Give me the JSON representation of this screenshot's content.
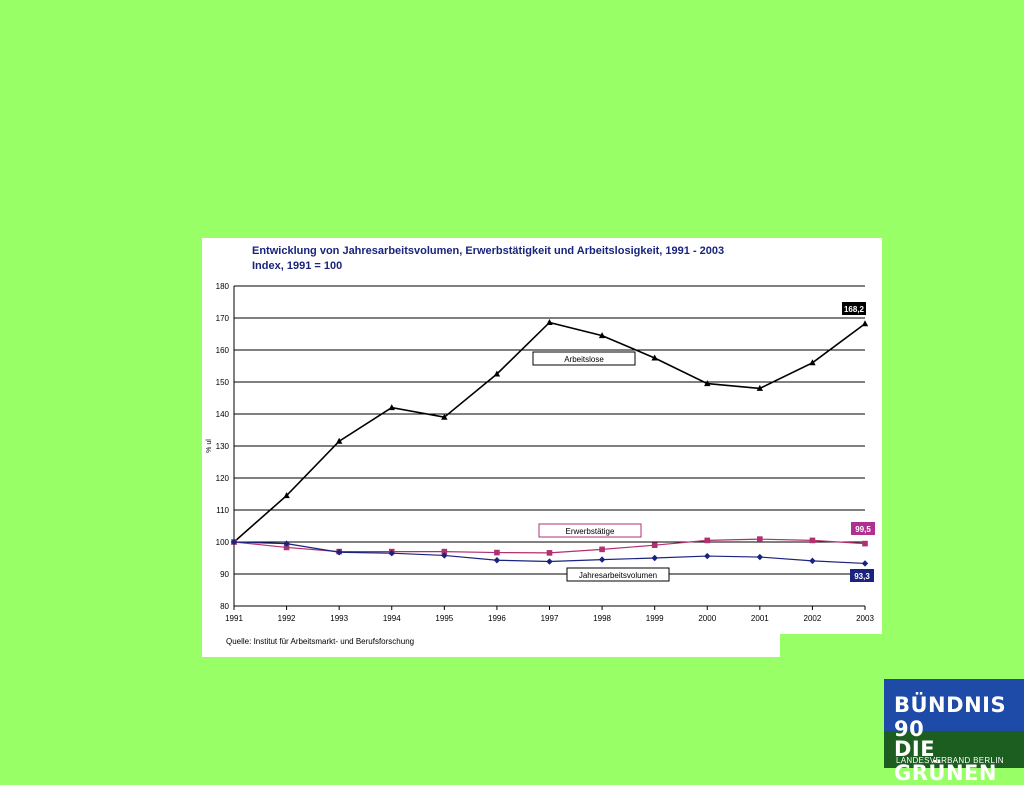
{
  "source": "Quelle:  Institut für Arbeitsmarkt- und Berufsforschung",
  "logo": {
    "line1": "BÜNDNIS 90",
    "line2": "DIE GRÜNEN",
    "line3": "LANDESVERBAND BERLIN",
    "colors": {
      "blue": "#1e4aa8",
      "green": "#1b5e20"
    }
  },
  "chart_data": {
    "type": "line",
    "title": "Entwicklung von Jahresarbeitsvolumen, Erwerbstätigkeit und Arbeitslosigkeit, 1991 - 2003",
    "subtitle": "Index, 1991 = 100",
    "ylabel": "% ul",
    "xlabel": "",
    "ylim": [
      80,
      180
    ],
    "yticks": [
      80,
      90,
      100,
      110,
      120,
      130,
      140,
      150,
      160,
      170,
      180
    ],
    "grid": true,
    "categories": [
      "1991",
      "1992",
      "1993",
      "1994",
      "1995",
      "1996",
      "1997",
      "1998",
      "1999",
      "2000",
      "2001",
      "2002",
      "2003"
    ],
    "series": [
      {
        "name": "Arbeitslose",
        "color": "#000000",
        "marker": "triangle",
        "values": [
          100,
          114.5,
          131.5,
          142,
          139,
          152.5,
          168.6,
          164.5,
          157.5,
          149.5,
          148,
          156,
          168.2
        ],
        "end_label": "168,2",
        "end_label_bg": "#000000"
      },
      {
        "name": "Erwerbstätige",
        "color": "#b03070",
        "marker": "square",
        "values": [
          100,
          98.3,
          97,
          97,
          97,
          96.7,
          96.6,
          97.7,
          99,
          100.5,
          100.9,
          100.5,
          99.5
        ],
        "end_label": "99,5",
        "end_label_bg": "#b03090"
      },
      {
        "name": "Jahresarbeitsvolumen",
        "color": "#1a237e",
        "marker": "diamond",
        "values": [
          100,
          99.5,
          96.8,
          96.5,
          95.8,
          94.3,
          93.9,
          94.5,
          95,
          95.6,
          95.3,
          94.1,
          93.3
        ],
        "end_label": "93,3",
        "end_label_bg": "#1a237e"
      }
    ]
  }
}
